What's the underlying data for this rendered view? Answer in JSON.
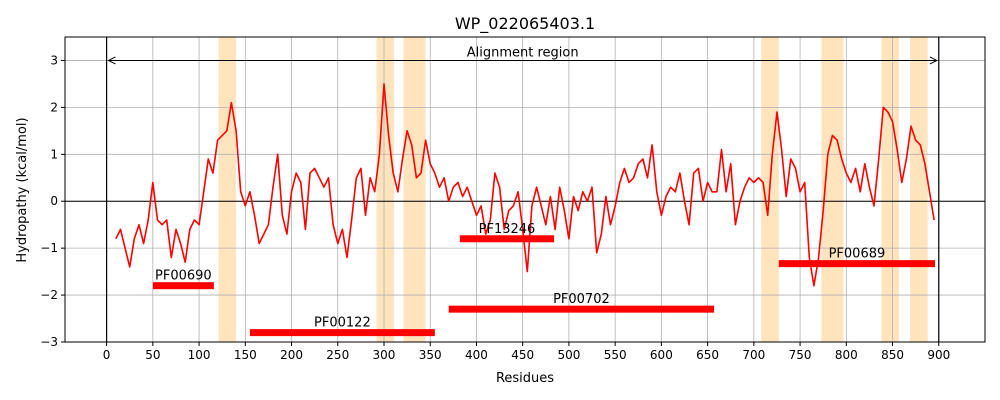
{
  "chart_data": {
    "type": "line",
    "title": "WP_022065403.1",
    "xlabel": "Residues",
    "ylabel": "Hydropathy (kcal/mol)",
    "xlim": [
      -45,
      950
    ],
    "ylim": [
      -3,
      3.5
    ],
    "xticks": [
      0,
      50,
      100,
      150,
      200,
      250,
      300,
      350,
      400,
      450,
      500,
      550,
      600,
      650,
      700,
      750,
      800,
      850,
      900
    ],
    "yticks": [
      -3,
      -2,
      -1,
      0,
      1,
      2,
      3
    ],
    "grid": true,
    "series": [
      {
        "color": "#ff0000",
        "x": [
          10,
          15,
          20,
          25,
          30,
          35,
          40,
          45,
          50,
          55,
          60,
          65,
          70,
          75,
          80,
          85,
          90,
          95,
          100,
          105,
          110,
          115,
          120,
          125,
          130,
          135,
          140,
          145,
          150,
          155,
          160,
          165,
          170,
          175,
          180,
          185,
          190,
          195,
          200,
          205,
          210,
          215,
          220,
          225,
          230,
          235,
          240,
          245,
          250,
          255,
          260,
          265,
          270,
          275,
          280,
          285,
          290,
          295,
          300,
          305,
          310,
          315,
          320,
          325,
          330,
          335,
          340,
          345,
          350,
          355,
          360,
          365,
          370,
          375,
          380,
          385,
          390,
          395,
          400,
          405,
          410,
          415,
          420,
          425,
          430,
          435,
          440,
          445,
          450,
          455,
          460,
          465,
          470,
          475,
          480,
          485,
          490,
          495,
          500,
          505,
          510,
          515,
          520,
          525,
          530,
          535,
          540,
          545,
          550,
          555,
          560,
          565,
          570,
          575,
          580,
          585,
          590,
          595,
          600,
          605,
          610,
          615,
          620,
          625,
          630,
          635,
          640,
          645,
          650,
          655,
          660,
          665,
          670,
          675,
          680,
          685,
          690,
          695,
          700,
          705,
          710,
          715,
          720,
          725,
          730,
          735,
          740,
          745,
          750,
          755,
          760,
          765,
          770,
          775,
          780,
          785,
          790,
          795,
          800,
          805,
          810,
          815,
          820,
          825,
          830,
          835,
          840,
          845,
          850,
          855,
          860,
          865,
          870,
          875,
          880,
          885,
          890,
          895
        ],
        "y": [
          -0.8,
          -0.6,
          -1.0,
          -1.4,
          -0.8,
          -0.5,
          -0.9,
          -0.4,
          0.4,
          -0.4,
          -0.5,
          -0.4,
          -1.2,
          -0.6,
          -0.9,
          -1.3,
          -0.6,
          -0.4,
          -0.5,
          0.2,
          0.9,
          0.6,
          1.3,
          1.4,
          1.5,
          2.1,
          1.5,
          0.2,
          -0.1,
          0.2,
          -0.3,
          -0.9,
          -0.7,
          -0.5,
          0.3,
          1.0,
          -0.3,
          -0.7,
          0.2,
          0.6,
          0.4,
          -0.6,
          0.6,
          0.7,
          0.5,
          0.3,
          0.5,
          -0.5,
          -0.9,
          -0.6,
          -1.2,
          -0.4,
          0.5,
          0.7,
          -0.3,
          0.5,
          0.2,
          1.0,
          2.5,
          1.4,
          0.6,
          0.2,
          0.9,
          1.5,
          1.2,
          0.5,
          0.6,
          1.3,
          0.8,
          0.6,
          0.3,
          0.5,
          0.0,
          0.3,
          0.4,
          0.1,
          0.3,
          0.0,
          -0.3,
          -0.1,
          -0.7,
          -0.4,
          0.6,
          0.3,
          -0.6,
          -0.2,
          -0.1,
          0.2,
          -0.6,
          -1.5,
          -0.1,
          0.3,
          -0.1,
          -0.5,
          0.1,
          -0.6,
          0.3,
          -0.2,
          -0.8,
          0.1,
          -0.2,
          0.2,
          0.0,
          0.3,
          -1.1,
          -0.7,
          0.1,
          -0.5,
          -0.1,
          0.4,
          0.7,
          0.4,
          0.5,
          0.8,
          0.9,
          0.5,
          1.2,
          0.2,
          -0.3,
          0.1,
          0.3,
          0.2,
          0.6,
          0.0,
          -0.5,
          0.6,
          0.7,
          0.0,
          0.4,
          0.2,
          0.2,
          1.1,
          0.2,
          0.8,
          -0.5,
          0.0,
          0.3,
          0.5,
          0.4,
          0.5,
          0.4,
          -0.3,
          1.0,
          1.9,
          1.1,
          0.1,
          0.9,
          0.7,
          0.2,
          0.4,
          -1.2,
          -1.8,
          -1.2,
          -0.2,
          1.0,
          1.4,
          1.3,
          0.9,
          0.6,
          0.4,
          0.7,
          0.2,
          0.8,
          0.3,
          -0.1,
          0.9,
          2.0,
          1.9,
          1.7,
          1.1,
          0.4,
          0.9,
          1.6,
          1.3,
          1.2,
          0.8,
          0.2,
          -0.4
        ]
      }
    ],
    "shaded_regions_x": [
      [
        121,
        140
      ],
      [
        292,
        311
      ],
      [
        321,
        345
      ],
      [
        708,
        727
      ],
      [
        773,
        797
      ],
      [
        838,
        857
      ],
      [
        869,
        888
      ]
    ],
    "shaded_color": "#ffe4bd",
    "vertical_lines_x": [
      0,
      900
    ],
    "arrow": {
      "from_x": 2,
      "to_x": 898,
      "y": 3.0
    },
    "alignment_label": "Alignment region",
    "domains": [
      {
        "label": "PF00690",
        "start": 50,
        "end": 116,
        "y": -1.8
      },
      {
        "label": "PF00122",
        "start": 155,
        "end": 355,
        "y": -2.8
      },
      {
        "label": "PF13246",
        "start": 382,
        "end": 484,
        "y": -0.8
      },
      {
        "label": "PF00702",
        "start": 370,
        "end": 657,
        "y": -2.3
      },
      {
        "label": "PF00689",
        "start": 727,
        "end": 896,
        "y": -1.33
      }
    ]
  }
}
